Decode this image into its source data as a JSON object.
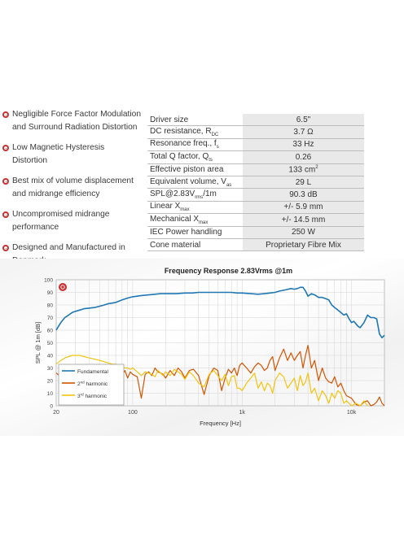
{
  "features": [
    {
      "line1": "Negligible Force Factor Modulation",
      "line2": "and Surround Radiation Distortion"
    },
    {
      "line1": "Low Magnetic Hysteresis",
      "line2": "Distortion"
    },
    {
      "line1": "Best mix of volume displacement",
      "line2": "and midrange efficiency"
    },
    {
      "line1": "Uncompromised midrange",
      "line2": "performance"
    },
    {
      "line1": "Designed and Manufactured in",
      "line2": "Denmark"
    }
  ],
  "specs": [
    {
      "label": "Driver size",
      "sub": "",
      "sup": "",
      "label_after": "",
      "value": "6.5\"",
      "value_sup": ""
    },
    {
      "label": "DC resistance, R",
      "sub": "DC",
      "sup": "",
      "label_after": "",
      "value": "3.7 Ω",
      "value_sup": ""
    },
    {
      "label": "Resonance freq., f",
      "sub": "s",
      "sup": "",
      "label_after": "",
      "value": "33 Hz",
      "value_sup": ""
    },
    {
      "label": "Total Q factor, Q",
      "sub": "ts",
      "sup": "",
      "label_after": "",
      "value": "0.26",
      "value_sup": ""
    },
    {
      "label": "Effective piston area",
      "sub": "",
      "sup": "",
      "label_after": "",
      "value": "133 cm",
      "value_sup": "2"
    },
    {
      "label": "Equivalent volume, V",
      "sub": "as",
      "sup": "",
      "label_after": "",
      "value": "29 L",
      "value_sup": ""
    },
    {
      "label": "SPL@2.83V",
      "sub": "rms",
      "sup": "",
      "label_after": "/1m",
      "value": "90.3 dB",
      "value_sup": ""
    },
    {
      "label": "Linear X",
      "sub": "max",
      "sup": "",
      "label_after": "",
      "value": "+/- 5.9 mm",
      "value_sup": ""
    },
    {
      "label": "Mechanical X",
      "sub": "max",
      "sup": "",
      "label_after": "",
      "value": "+/- 14.5 mm",
      "value_sup": ""
    },
    {
      "label": "IEC Power handling",
      "sub": "",
      "sup": "",
      "label_after": "",
      "value": "250 W",
      "value_sup": ""
    },
    {
      "label": "Cone material",
      "sub": "",
      "sup": "",
      "label_after": "",
      "value": "Proprietary Fibre Mix",
      "value_sup": ""
    }
  ],
  "colors": {
    "accent": "#c9302f",
    "fundamental": "#1f77b4",
    "second": "#d35400",
    "third": "#f1c40f"
  },
  "chart_data": {
    "type": "line",
    "title": "Frequency Response 2.83Vrms @1m",
    "xlabel": "Frequency [Hz]",
    "ylabel": "SPL @ 1m [dB]",
    "xscale": "log",
    "xlim": [
      20,
      20000
    ],
    "ylim": [
      0,
      100
    ],
    "xticks": [
      {
        "v": 20,
        "t": "20"
      },
      {
        "v": 100,
        "t": "100"
      },
      {
        "v": 1000,
        "t": "1k"
      },
      {
        "v": 10000,
        "t": "10k"
      }
    ],
    "yticks": [
      0,
      10,
      20,
      30,
      40,
      50,
      60,
      70,
      80,
      90,
      100
    ],
    "grid": true,
    "legend": "bottom-left",
    "legend_entries": [
      {
        "pre": "Fundamental",
        "sup": "",
        "post": ""
      },
      {
        "pre": "2",
        "sup": "nd",
        "post": " harmonic"
      },
      {
        "pre": "3",
        "sup": "rd",
        "post": " harmonic"
      }
    ],
    "series": [
      {
        "name": "Fundamental",
        "color": "#1f77b4",
        "width": 1.6,
        "x": [
          20,
          21,
          22,
          24,
          26,
          28,
          30,
          33,
          36,
          40,
          45,
          50,
          55,
          60,
          70,
          80,
          90,
          100,
          120,
          140,
          160,
          180,
          200,
          250,
          300,
          350,
          400,
          500,
          600,
          700,
          800,
          900,
          1000,
          1200,
          1400,
          1600,
          1800,
          2000,
          2200,
          2500,
          2800,
          3000,
          3200,
          3400,
          3600,
          3800,
          4000,
          4300,
          4600,
          5000,
          5400,
          5800,
          6200,
          6600,
          7000,
          7500,
          8000,
          8500,
          9000,
          9500,
          10000,
          10500,
          11000,
          11500,
          12000,
          13000,
          14000,
          15000,
          16000,
          17000,
          18000,
          19000,
          20000
        ],
        "y": [
          60,
          63,
          66,
          70,
          72,
          74,
          75,
          76,
          77,
          77.5,
          78,
          79,
          80,
          81,
          82,
          84,
          85.5,
          86.5,
          87.5,
          88,
          88.5,
          89,
          89,
          89,
          89.5,
          89.5,
          90,
          90,
          90,
          90,
          90,
          89.5,
          89.5,
          89,
          88.5,
          89,
          89.5,
          90,
          91,
          92,
          93,
          92.5,
          93,
          94,
          94,
          91,
          87,
          89,
          88,
          86,
          86,
          85,
          84,
          80,
          78,
          76,
          74,
          72,
          73,
          69,
          66,
          67,
          65,
          63,
          62,
          66,
          72,
          70,
          70,
          69,
          57,
          54,
          56
        ]
      },
      {
        "name": "2nd harmonic",
        "color": "#d35400",
        "width": 1.2,
        "x": [
          20,
          22,
          24,
          26,
          28,
          30,
          33,
          36,
          40,
          45,
          50,
          55,
          60,
          65,
          70,
          75,
          80,
          85,
          90,
          95,
          100,
          110,
          120,
          130,
          140,
          150,
          160,
          170,
          180,
          190,
          200,
          220,
          240,
          260,
          280,
          300,
          330,
          360,
          400,
          450,
          500,
          550,
          600,
          650,
          700,
          750,
          800,
          850,
          900,
          950,
          1000,
          1100,
          1200,
          1300,
          1400,
          1500,
          1600,
          1700,
          1800,
          1900,
          2000,
          2200,
          2400,
          2600,
          2800,
          3000,
          3200,
          3400,
          3600,
          3800,
          4000,
          4300,
          4600,
          5000,
          5400,
          5800,
          6200,
          6600,
          7000,
          7500,
          8000,
          8500,
          9000,
          10000,
          11000,
          12000,
          13000,
          14000,
          15000,
          16000,
          17000,
          18000,
          19000,
          20000
        ],
        "y": [
          26,
          23,
          21,
          20,
          19,
          20,
          21,
          22,
          20,
          21,
          22,
          27,
          28,
          22,
          25,
          27,
          24,
          28,
          22,
          27,
          25,
          23,
          6,
          25,
          27,
          24,
          30,
          27,
          26,
          25,
          22,
          28,
          24,
          30,
          27,
          22,
          28,
          29,
          24,
          9,
          24,
          30,
          28,
          12,
          22,
          29,
          26,
          30,
          24,
          32,
          34,
          30,
          26,
          31,
          34,
          32,
          28,
          30,
          36,
          39,
          28,
          38,
          45,
          36,
          42,
          36,
          40,
          43,
          30,
          40,
          48,
          30,
          36,
          20,
          30,
          22,
          19,
          18,
          23,
          15,
          18,
          12,
          8,
          6,
          1,
          0,
          3,
          4,
          0,
          1,
          3,
          7,
          2,
          0
        ]
      },
      {
        "name": "3rd harmonic",
        "color": "#f1c40f",
        "width": 1.2,
        "x": [
          20,
          22,
          24,
          26,
          28,
          30,
          33,
          36,
          40,
          45,
          50,
          55,
          60,
          65,
          70,
          75,
          80,
          85,
          90,
          95,
          100,
          110,
          120,
          130,
          140,
          150,
          160,
          170,
          180,
          190,
          200,
          220,
          240,
          260,
          280,
          300,
          330,
          360,
          400,
          450,
          500,
          550,
          600,
          650,
          700,
          750,
          800,
          850,
          900,
          950,
          1000,
          1100,
          1200,
          1300,
          1400,
          1500,
          1600,
          1700,
          1800,
          1900,
          2000,
          2200,
          2400,
          2600,
          2800,
          3000,
          3200,
          3400,
          3600,
          3800,
          4000,
          4300,
          4600,
          5000,
          5400,
          5800,
          6200,
          6600,
          7000,
          7500,
          8000,
          8500,
          9000,
          10000,
          11000,
          12000,
          13000,
          14000
        ],
        "y": [
          33,
          36,
          38,
          39,
          40,
          40,
          40,
          39,
          38,
          37,
          36,
          35,
          34,
          33,
          33,
          32,
          31,
          30,
          30,
          29,
          30,
          27,
          24,
          27,
          26,
          25,
          23,
          28,
          26,
          24,
          27,
          24,
          29,
          27,
          25,
          21,
          27,
          24,
          18,
          15,
          25,
          28,
          24,
          20,
          25,
          16,
          23,
          24,
          14,
          14,
          12,
          18,
          22,
          26,
          14,
          19,
          12,
          18,
          16,
          10,
          20,
          26,
          23,
          14,
          18,
          22,
          12,
          24,
          16,
          19,
          26,
          10,
          14,
          4,
          12,
          8,
          2,
          10,
          6,
          12,
          10,
          2,
          4,
          0,
          2,
          0,
          4,
          0
        ]
      }
    ]
  }
}
